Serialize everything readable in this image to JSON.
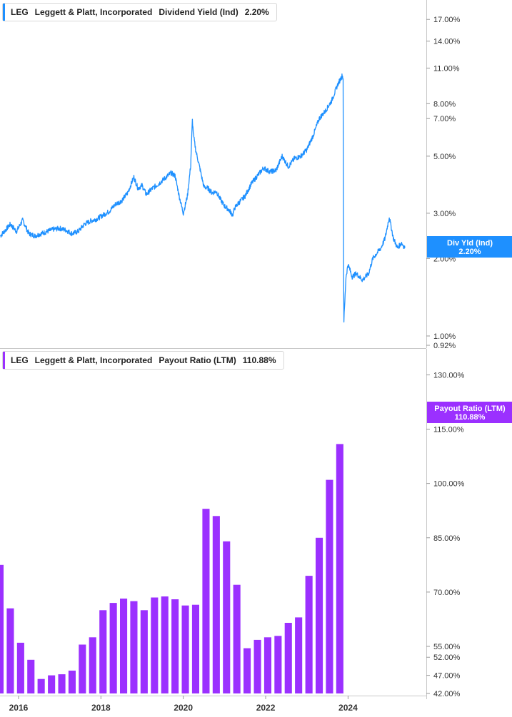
{
  "chart_data": [
    {
      "type": "line",
      "legend": {
        "ticker": "LEG",
        "company": "Leggett & Platt, Incorporated",
        "metric": "Dividend Yield (Ind)",
        "value": "2.20%"
      },
      "badge": {
        "label": "Div Yld (Ind)",
        "value": "2.20%"
      },
      "color": "#1e90ff",
      "scale": "log",
      "ylim": [
        0.92,
        18.5
      ],
      "y_ticks": [
        {
          "v": 17,
          "label": "17.00%"
        },
        {
          "v": 14,
          "label": "14.00%"
        },
        {
          "v": 11,
          "label": "11.00%"
        },
        {
          "v": 8,
          "label": "8.00%"
        },
        {
          "v": 7,
          "label": "7.00%"
        },
        {
          "v": 5,
          "label": "5.00%"
        },
        {
          "v": 3,
          "label": "3.00%"
        },
        {
          "v": 2,
          "label": "2.00%"
        },
        {
          "v": 1,
          "label": "1.00%"
        },
        {
          "v": 0.92,
          "label": "0.92%"
        }
      ],
      "xlim": [
        2015.55,
        2025.9
      ],
      "series": [
        {
          "x": [
            2015.56,
            2015.7,
            2015.8,
            2015.95,
            2016.1,
            2016.25,
            2016.4,
            2016.55,
            2016.7,
            2016.85,
            2017.0,
            2017.15,
            2017.3,
            2017.45,
            2017.6,
            2017.75,
            2017.9,
            2018.05,
            2018.2,
            2018.35,
            2018.5,
            2018.65,
            2018.8,
            2018.9,
            2019.0,
            2019.1,
            2019.25,
            2019.4,
            2019.55,
            2019.7,
            2019.8,
            2019.9,
            2020.0,
            2020.1,
            2020.18,
            2020.22,
            2020.25,
            2020.3,
            2020.4,
            2020.5,
            2020.6,
            2020.7,
            2020.8,
            2020.9,
            2021.0,
            2021.1,
            2021.2,
            2021.25,
            2021.35,
            2021.5,
            2021.65,
            2021.8,
            2021.95,
            2022.1,
            2022.25,
            2022.4,
            2022.55,
            2022.7,
            2022.85,
            2023.0,
            2023.15,
            2023.3,
            2023.45,
            2023.6,
            2023.75,
            2023.82,
            2023.86,
            2023.88,
            2023.89,
            2023.9,
            2023.95,
            2024.0,
            2024.1,
            2024.2,
            2024.35,
            2024.5,
            2024.6,
            2024.7,
            2024.8,
            2024.9,
            2025.0,
            2025.1,
            2025.2,
            2025.3,
            2025.38
          ],
          "y": [
            2.45,
            2.6,
            2.72,
            2.55,
            2.82,
            2.5,
            2.45,
            2.5,
            2.55,
            2.6,
            2.62,
            2.58,
            2.5,
            2.55,
            2.72,
            2.8,
            2.85,
            2.95,
            3.05,
            3.25,
            3.35,
            3.6,
            4.15,
            3.75,
            3.85,
            3.55,
            3.75,
            3.9,
            4.1,
            4.3,
            4.2,
            3.5,
            3.0,
            3.5,
            4.6,
            6.9,
            6.0,
            5.3,
            4.5,
            3.8,
            3.75,
            3.6,
            3.65,
            3.4,
            3.2,
            3.1,
            2.95,
            3.15,
            3.3,
            3.5,
            3.9,
            4.2,
            4.5,
            4.35,
            4.4,
            5.0,
            4.55,
            4.9,
            5.0,
            5.3,
            6.0,
            7.0,
            7.5,
            8.2,
            9.5,
            10.0,
            10.3,
            10.0,
            2.0,
            1.15,
            1.7,
            1.9,
            1.7,
            1.75,
            1.65,
            1.75,
            2.0,
            2.1,
            2.2,
            2.4,
            2.9,
            2.4,
            2.2,
            2.3,
            2.2
          ]
        }
      ]
    },
    {
      "type": "bar",
      "legend": {
        "ticker": "LEG",
        "company": "Leggett & Platt, Incorporated",
        "metric": "Payout Ratio (LTM)",
        "value": "110.88%"
      },
      "badge": {
        "label": "Payout Ratio (LTM)",
        "value": "110.88%"
      },
      "color": "#9b30ff",
      "ylim": [
        42,
        135
      ],
      "y_ticks": [
        {
          "v": 130,
          "label": "130.00%"
        },
        {
          "v": 115,
          "label": "115.00%"
        },
        {
          "v": 100,
          "label": "100.00%"
        },
        {
          "v": 85,
          "label": "85.00%"
        },
        {
          "v": 70,
          "label": "70.00%"
        },
        {
          "v": 55,
          "label": "55.00%"
        },
        {
          "v": 52,
          "label": "52.00%"
        },
        {
          "v": 47,
          "label": "47.00%"
        },
        {
          "v": 42,
          "label": "42.00%"
        }
      ],
      "xlim": [
        2015.55,
        2025.9
      ],
      "x_ticks": [
        "2016",
        "2018",
        "2020",
        "2022",
        "2024"
      ],
      "series": [
        {
          "x": [
            2015.55,
            2015.8,
            2016.05,
            2016.3,
            2016.55,
            2016.8,
            2017.05,
            2017.3,
            2017.55,
            2017.8,
            2018.05,
            2018.3,
            2018.55,
            2018.8,
            2019.05,
            2019.3,
            2019.55,
            2019.8,
            2020.05,
            2020.3,
            2020.55,
            2020.8,
            2021.05,
            2021.3,
            2021.55,
            2021.8,
            2022.05,
            2022.3,
            2022.55,
            2022.8,
            2023.05,
            2023.3,
            2023.55,
            2023.8
          ],
          "values": [
            77.5,
            65.5,
            56.0,
            51.3,
            46.0,
            47.0,
            47.3,
            48.3,
            55.5,
            57.5,
            65.0,
            67.0,
            68.2,
            67.5,
            65.0,
            68.5,
            68.8,
            68.0,
            66.3,
            66.5,
            93.0,
            91.0,
            84.0,
            72.0,
            54.5,
            56.8,
            57.5,
            57.9,
            61.5,
            63.0,
            74.5,
            85.0,
            101.0,
            110.88
          ]
        }
      ]
    }
  ]
}
